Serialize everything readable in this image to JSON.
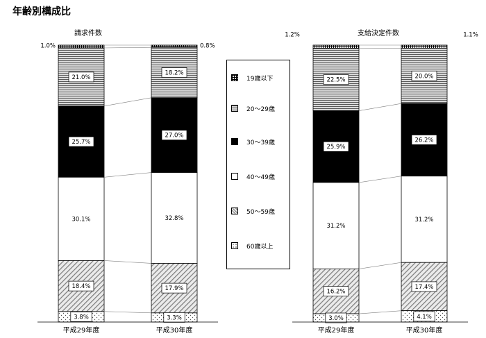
{
  "page_title": "年齢別構成比",
  "legend": {
    "items": [
      {
        "label": "19歳以下",
        "key": "u19"
      },
      {
        "label": "20～29歳",
        "key": "a20"
      },
      {
        "label": "30～39歳",
        "key": "a30"
      },
      {
        "label": "40～49歳",
        "key": "a40"
      },
      {
        "label": "50～59歳",
        "key": "a50"
      },
      {
        "label": "60歳以上",
        "key": "o60"
      }
    ]
  },
  "chart_data": [
    {
      "type": "bar",
      "stacked": true,
      "title": "請求件数",
      "categories": [
        "平成29年度",
        "平成30年度"
      ],
      "series": [
        {
          "name": "19歳以下",
          "key": "u19",
          "values": [
            1.0,
            0.8
          ]
        },
        {
          "name": "20～29歳",
          "key": "a20",
          "values": [
            21.0,
            18.2
          ]
        },
        {
          "name": "30～39歳",
          "key": "a30",
          "values": [
            25.7,
            27.0
          ]
        },
        {
          "name": "40～49歳",
          "key": "a40",
          "values": [
            30.1,
            32.8
          ]
        },
        {
          "name": "50～59歳",
          "key": "a50",
          "values": [
            18.4,
            17.9
          ]
        },
        {
          "name": "60歳以上",
          "key": "o60",
          "values": [
            3.8,
            3.3
          ]
        }
      ],
      "labels": [
        [
          "1.0%",
          "21.0%",
          "25.7%",
          "30.1%",
          "18.4%",
          "3.8%"
        ],
        [
          "0.8%",
          "18.2%",
          "27.0%",
          "32.8%",
          "17.9%",
          "3.3%"
        ]
      ],
      "ylim": [
        0,
        100
      ]
    },
    {
      "type": "bar",
      "stacked": true,
      "title": "支給決定件数",
      "categories": [
        "平成29年度",
        "平成30年度"
      ],
      "series": [
        {
          "name": "19歳以下",
          "key": "u19",
          "values": [
            1.2,
            1.1
          ]
        },
        {
          "name": "20～29歳",
          "key": "a20",
          "values": [
            22.5,
            20.0
          ]
        },
        {
          "name": "30～39歳",
          "key": "a30",
          "values": [
            25.9,
            26.2
          ]
        },
        {
          "name": "40～49歳",
          "key": "a40",
          "values": [
            31.2,
            31.2
          ]
        },
        {
          "name": "50～59歳",
          "key": "a50",
          "values": [
            16.2,
            17.4
          ]
        },
        {
          "name": "60歳以上",
          "key": "o60",
          "values": [
            3.0,
            4.1
          ]
        }
      ],
      "labels": [
        [
          "1.2%",
          "22.5%",
          "25.9%",
          "31.2%",
          "16.2%",
          "3.0%"
        ],
        [
          "1.1%",
          "20.0%",
          "26.2%",
          "31.2%",
          "17.4%",
          "4.1%"
        ]
      ],
      "ylim": [
        0,
        100
      ]
    }
  ]
}
